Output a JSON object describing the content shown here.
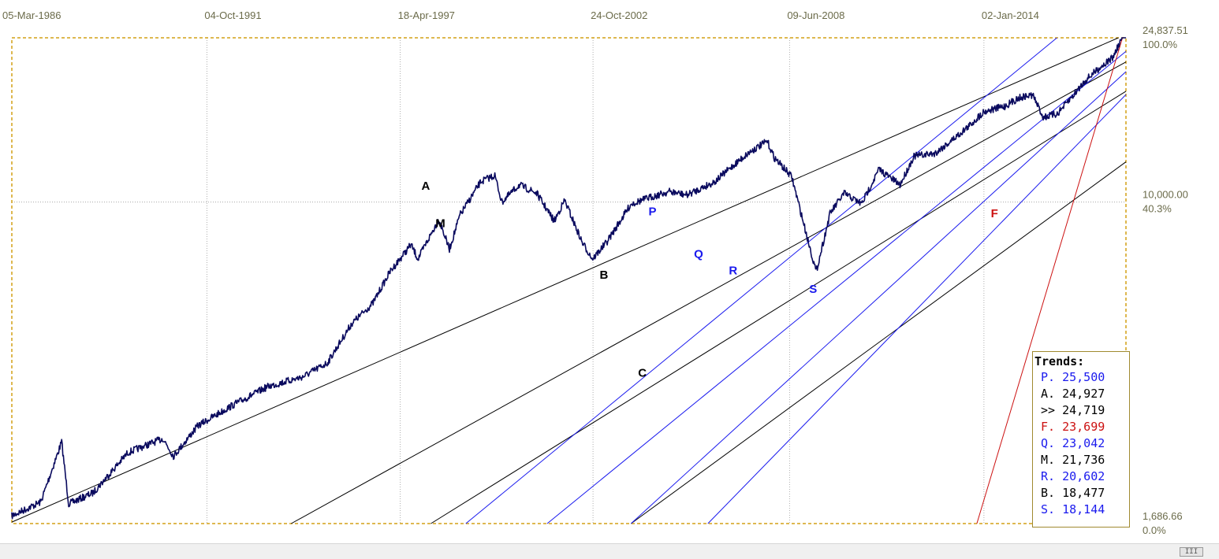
{
  "chart_data": {
    "type": "line",
    "x_tick_labels": [
      "05-Mar-1986",
      "04-Oct-1991",
      "18-Apr-1997",
      "24-Oct-2002",
      "09-Jun-2008",
      "02-Jan-2014"
    ],
    "x_range": [
      "1986-03-05",
      "2018-01-26"
    ],
    "y_scale": "log",
    "y_range": [
      1686.66,
      24837.51
    ],
    "y_labels": [
      {
        "value": "24,837.51",
        "pct": "100.0%",
        "v": 24837.51
      },
      {
        "value": "10,000.00",
        "pct": "40.3%",
        "v": 10000
      },
      {
        "value": "1,686.66",
        "pct": "0.0%",
        "v": 1686.66
      }
    ],
    "grid": true,
    "series_color": "#0a0a5e",
    "series": [
      [
        1986.17,
        1760
      ],
      [
        1987.0,
        1900
      ],
      [
        1987.6,
        2650
      ],
      [
        1987.8,
        1880
      ],
      [
        1988.5,
        2000
      ],
      [
        1989.5,
        2500
      ],
      [
        1990.5,
        2700
      ],
      [
        1990.8,
        2450
      ],
      [
        1991.5,
        2900
      ],
      [
        1992.5,
        3250
      ],
      [
        1993.5,
        3600
      ],
      [
        1994.5,
        3800
      ],
      [
        1995.2,
        4100
      ],
      [
        1995.9,
        5100
      ],
      [
        1996.5,
        5700
      ],
      [
        1997.0,
        6800
      ],
      [
        1997.6,
        7900
      ],
      [
        1997.8,
        7300
      ],
      [
        1998.4,
        9100
      ],
      [
        1998.7,
        7700
      ],
      [
        1999.0,
        9300
      ],
      [
        1999.6,
        11200
      ],
      [
        2000.0,
        11600
      ],
      [
        2000.2,
        10000
      ],
      [
        2000.7,
        11000
      ],
      [
        2001.2,
        10500
      ],
      [
        2001.7,
        9000
      ],
      [
        2002.0,
        10100
      ],
      [
        2002.5,
        8000
      ],
      [
        2002.8,
        7300
      ],
      [
        2003.2,
        8000
      ],
      [
        2003.9,
        9900
      ],
      [
        2004.5,
        10300
      ],
      [
        2005.0,
        10600
      ],
      [
        2005.5,
        10400
      ],
      [
        2006.3,
        11200
      ],
      [
        2006.8,
        12200
      ],
      [
        2007.3,
        13200
      ],
      [
        2007.8,
        14000
      ],
      [
        2008.0,
        12800
      ],
      [
        2008.5,
        11500
      ],
      [
        2008.9,
        8500
      ],
      [
        2009.2,
        6800
      ],
      [
        2009.6,
        9400
      ],
      [
        2010.0,
        10500
      ],
      [
        2010.5,
        9900
      ],
      [
        2011.0,
        12000
      ],
      [
        2011.6,
        11000
      ],
      [
        2012.0,
        12900
      ],
      [
        2012.6,
        13100
      ],
      [
        2013.0,
        13900
      ],
      [
        2013.6,
        15300
      ],
      [
        2014.0,
        16500
      ],
      [
        2014.6,
        17000
      ],
      [
        2015.0,
        17800
      ],
      [
        2015.4,
        18100
      ],
      [
        2015.7,
        16000
      ],
      [
        2016.1,
        16300
      ],
      [
        2016.5,
        17800
      ],
      [
        2016.9,
        19600
      ],
      [
        2017.3,
        21000
      ],
      [
        2017.7,
        22300
      ],
      [
        2018.07,
        26000
      ]
    ],
    "trend_lines": [
      {
        "label": "A",
        "color": "#000000",
        "p1": [
          1986.17,
          1700
        ],
        "p2": [
          2018.07,
          25300
        ]
      },
      {
        "label": "M",
        "color": "#000000",
        "p1": [
          1994.17,
          1686.66
        ],
        "p2": [
          2018.07,
          21736
        ]
      },
      {
        "label": "B",
        "color": "#000000",
        "p1": [
          1998.17,
          1686.66
        ],
        "p2": [
          2018.07,
          18477
        ]
      },
      {
        "label": "C",
        "color": "#000000",
        "p1": [
          2003.9,
          1686.66
        ],
        "p2": [
          2018.07,
          12500
        ]
      },
      {
        "label": "P",
        "color": "#1a1aee",
        "p1": [
          1999.17,
          1686.66
        ],
        "p2": [
          2016.5,
          26500
        ]
      },
      {
        "label": "Q",
        "color": "#1a1aee",
        "p1": [
          2001.5,
          1686.66
        ],
        "p2": [
          2018.07,
          23042
        ]
      },
      {
        "label": "R",
        "color": "#1a1aee",
        "p1": [
          2003.9,
          1686.66
        ],
        "p2": [
          2018.07,
          20602
        ]
      },
      {
        "label": "S",
        "color": "#1a1aee",
        "p1": [
          2006.1,
          1686.66
        ],
        "p2": [
          2018.07,
          18144
        ]
      },
      {
        "label": "F",
        "color": "#cc1111",
        "p1": [
          2013.8,
          1686.66
        ],
        "p2": [
          2018.07,
          26500
        ]
      }
    ],
    "point_labels": [
      {
        "text": "A",
        "color": "#000000",
        "x": 1997.9,
        "y": 10700
      },
      {
        "text": "M",
        "color": "#000000",
        "x": 1998.3,
        "y": 8700
      },
      {
        "text": "B",
        "color": "#000000",
        "x": 2003.0,
        "y": 6550
      },
      {
        "text": "C",
        "color": "#000000",
        "x": 2004.1,
        "y": 3800
      },
      {
        "text": "P",
        "color": "#1a1aee",
        "x": 2004.4,
        "y": 9300
      },
      {
        "text": "Q",
        "color": "#1a1aee",
        "x": 2005.7,
        "y": 7350
      },
      {
        "text": "R",
        "color": "#1a1aee",
        "x": 2006.7,
        "y": 6700
      },
      {
        "text": "S",
        "color": "#1a1aee",
        "x": 2009.0,
        "y": 6050
      },
      {
        "text": "F",
        "color": "#cc1111",
        "x": 2014.2,
        "y": 9200
      }
    ]
  },
  "trends": {
    "title": "Trends:",
    "rows": [
      {
        "label": "P.",
        "value": "25,500",
        "color": "#1a1aee"
      },
      {
        "label": "A.",
        "value": "24,927",
        "color": "#000000"
      },
      {
        "label": ">>",
        "value": "24,719",
        "color": "#000000"
      },
      {
        "label": "F.",
        "value": "23,699",
        "color": "#cc1111"
      },
      {
        "label": "Q.",
        "value": "23,042",
        "color": "#1a1aee"
      },
      {
        "label": "M.",
        "value": "21,736",
        "color": "#000000"
      },
      {
        "label": "R.",
        "value": "20,602",
        "color": "#1a1aee"
      },
      {
        "label": "B.",
        "value": "18,477",
        "color": "#000000"
      },
      {
        "label": "S.",
        "value": "18,144",
        "color": "#1a1aee"
      }
    ]
  },
  "scrollbar": {
    "thumb_label": "III"
  }
}
